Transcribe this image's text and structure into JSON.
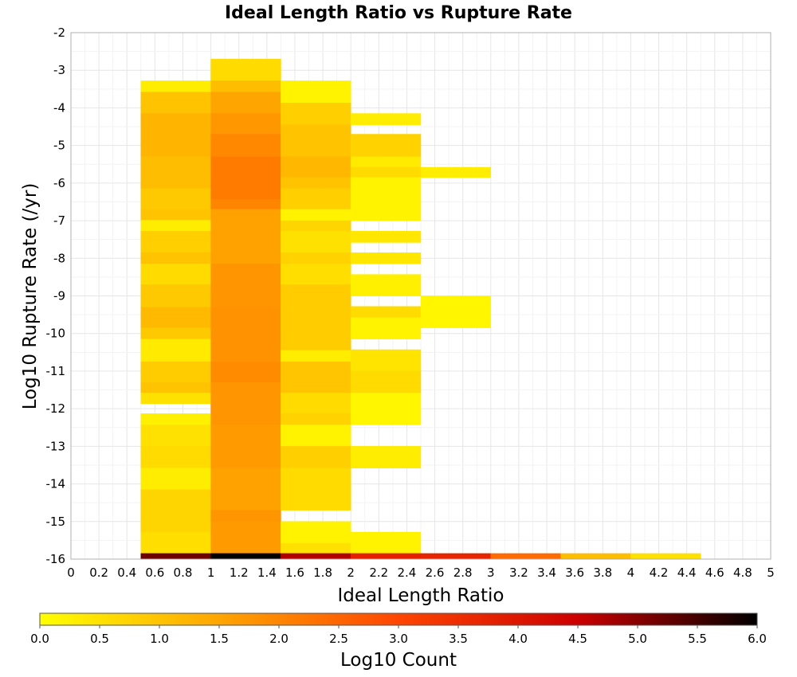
{
  "chart_data": {
    "type": "heatmap",
    "title": "Ideal Length Ratio vs Rupture Rate",
    "xlabel": "Ideal Length Ratio",
    "ylabel": "Log10 Rupture Rate (/yr)",
    "xlim": [
      0,
      5
    ],
    "ylim": [
      -16,
      -2
    ],
    "x_ticks": [
      "0",
      "0.2",
      "0.4",
      "0.6",
      "0.8",
      "1",
      "1.2",
      "1.4",
      "1.6",
      "1.8",
      "2",
      "2.2",
      "2.4",
      "2.6",
      "2.8",
      "3",
      "3.2",
      "3.4",
      "3.6",
      "3.8",
      "4",
      "4.2",
      "4.4",
      "4.6",
      "4.8",
      "5"
    ],
    "y_ticks": [
      "-2",
      "-3",
      "-4",
      "-5",
      "-6",
      "-7",
      "-8",
      "-9",
      "-10",
      "-11",
      "-12",
      "-13",
      "-14",
      "-15",
      "-16"
    ],
    "grid": true,
    "colorbar": {
      "label": "Log10 Count",
      "min": 0.0,
      "max": 6.0,
      "ticks": [
        "0.0",
        "0.5",
        "1.0",
        "1.5",
        "2.0",
        "2.5",
        "3.0",
        "3.5",
        "4.0",
        "4.5",
        "5.0",
        "5.5",
        "6.0"
      ],
      "colors": [
        "#ffff00",
        "#ffa500",
        "#ff4500",
        "#cc0000",
        "#000000"
      ]
    },
    "columns": [
      {
        "x0": 0.5,
        "x1": 1.0,
        "cells": [
          {
            "y0": -3.28,
            "y1": -3.58,
            "v": 0.3
          },
          {
            "y0": -3.58,
            "y1": -4.15,
            "v": 1.0
          },
          {
            "y0": -4.15,
            "y1": -5.3,
            "v": 1.25
          },
          {
            "y0": -5.3,
            "y1": -6.15,
            "v": 1.1
          },
          {
            "y0": -6.15,
            "y1": -6.7,
            "v": 0.9
          },
          {
            "y0": -6.7,
            "y1": -6.99,
            "v": 1.0
          },
          {
            "y0": -6.99,
            "y1": -7.28,
            "v": 0.3
          },
          {
            "y0": -7.28,
            "y1": -7.85,
            "v": 0.8
          },
          {
            "y0": -7.85,
            "y1": -8.15,
            "v": 1.0
          },
          {
            "y0": -8.15,
            "y1": -8.7,
            "v": 0.6
          },
          {
            "y0": -8.7,
            "y1": -9.3,
            "v": 0.9
          },
          {
            "y0": -9.3,
            "y1": -9.85,
            "v": 1.15
          },
          {
            "y0": -9.85,
            "y1": -10.15,
            "v": 0.9
          },
          {
            "y0": -10.15,
            "y1": -10.75,
            "v": 0.35
          },
          {
            "y0": -10.75,
            "y1": -11.3,
            "v": 0.85
          },
          {
            "y0": -11.3,
            "y1": -11.58,
            "v": 1.0
          },
          {
            "y0": -11.58,
            "y1": -11.87,
            "v": 0.5
          },
          {
            "y0": -12.13,
            "y1": -12.43,
            "v": 0.25
          },
          {
            "y0": -12.43,
            "y1": -13.0,
            "v": 0.5
          },
          {
            "y0": -13.0,
            "y1": -13.58,
            "v": 0.6
          },
          {
            "y0": -13.58,
            "y1": -14.15,
            "v": 0.3
          },
          {
            "y0": -14.15,
            "y1": -15.28,
            "v": 0.7
          },
          {
            "y0": -15.28,
            "y1": -15.85,
            "v": 0.55
          },
          {
            "y0": -15.85,
            "y1": -16.0,
            "v": 5.2
          }
        ]
      },
      {
        "x0": 1.0,
        "x1": 1.5,
        "cells": [
          {
            "y0": -2.7,
            "y1": -3.28,
            "v": 0.6
          },
          {
            "y0": -3.28,
            "y1": -3.58,
            "v": 1.1
          },
          {
            "y0": -3.58,
            "y1": -4.15,
            "v": 1.5
          },
          {
            "y0": -4.15,
            "y1": -4.7,
            "v": 1.7
          },
          {
            "y0": -4.7,
            "y1": -5.3,
            "v": 1.95
          },
          {
            "y0": -5.3,
            "y1": -6.43,
            "v": 2.15
          },
          {
            "y0": -6.43,
            "y1": -6.7,
            "v": 2.0
          },
          {
            "y0": -6.7,
            "y1": -8.15,
            "v": 1.55
          },
          {
            "y0": -8.15,
            "y1": -9.3,
            "v": 1.75
          },
          {
            "y0": -9.3,
            "y1": -10.75,
            "v": 1.8
          },
          {
            "y0": -10.75,
            "y1": -11.3,
            "v": 1.9
          },
          {
            "y0": -11.3,
            "y1": -12.43,
            "v": 1.75
          },
          {
            "y0": -12.43,
            "y1": -13.58,
            "v": 1.65
          },
          {
            "y0": -13.58,
            "y1": -14.7,
            "v": 1.55
          },
          {
            "y0": -14.7,
            "y1": -15.0,
            "v": 1.75
          },
          {
            "y0": -15.0,
            "y1": -15.85,
            "v": 1.65
          },
          {
            "y0": -15.85,
            "y1": -16.0,
            "v": 6.0
          }
        ]
      },
      {
        "x0": 1.5,
        "x1": 2.0,
        "cells": [
          {
            "y0": -3.28,
            "y1": -3.87,
            "v": 0.2
          },
          {
            "y0": -3.87,
            "y1": -4.45,
            "v": 0.8
          },
          {
            "y0": -4.45,
            "y1": -5.3,
            "v": 1.0
          },
          {
            "y0": -5.3,
            "y1": -5.85,
            "v": 1.2
          },
          {
            "y0": -5.85,
            "y1": -6.15,
            "v": 1.0
          },
          {
            "y0": -6.15,
            "y1": -6.7,
            "v": 0.8
          },
          {
            "y0": -6.7,
            "y1": -7.0,
            "v": 0.2
          },
          {
            "y0": -7.0,
            "y1": -7.28,
            "v": 0.7
          },
          {
            "y0": -7.28,
            "y1": -7.85,
            "v": 0.5
          },
          {
            "y0": -7.85,
            "y1": -8.15,
            "v": 0.75
          },
          {
            "y0": -8.15,
            "y1": -8.7,
            "v": 0.55
          },
          {
            "y0": -8.7,
            "y1": -10.45,
            "v": 0.85
          },
          {
            "y0": -10.45,
            "y1": -10.75,
            "v": 0.3
          },
          {
            "y0": -10.75,
            "y1": -11.58,
            "v": 0.95
          },
          {
            "y0": -11.58,
            "y1": -12.13,
            "v": 0.6
          },
          {
            "y0": -12.13,
            "y1": -12.43,
            "v": 0.75
          },
          {
            "y0": -12.43,
            "y1": -13.0,
            "v": 0.2
          },
          {
            "y0": -13.0,
            "y1": -13.58,
            "v": 0.8
          },
          {
            "y0": -13.58,
            "y1": -14.7,
            "v": 0.6
          },
          {
            "y0": -15.0,
            "y1": -15.58,
            "v": 0.2
          },
          {
            "y0": -15.58,
            "y1": -15.85,
            "v": 0.5
          },
          {
            "y0": -15.85,
            "y1": -16.0,
            "v": 4.7
          }
        ]
      },
      {
        "x0": 2.0,
        "x1": 2.5,
        "cells": [
          {
            "y0": -4.15,
            "y1": -4.45,
            "v": 0.3
          },
          {
            "y0": -4.7,
            "y1": -5.3,
            "v": 0.75
          },
          {
            "y0": -5.3,
            "y1": -5.58,
            "v": 0.35
          },
          {
            "y0": -5.58,
            "y1": -5.85,
            "v": 0.6
          },
          {
            "y0": -5.85,
            "y1": -7.0,
            "v": 0.2
          },
          {
            "y0": -7.28,
            "y1": -7.58,
            "v": 0.4
          },
          {
            "y0": -7.85,
            "y1": -8.15,
            "v": 0.4
          },
          {
            "y0": -8.43,
            "y1": -9.0,
            "v": 0.25
          },
          {
            "y0": -9.28,
            "y1": -9.58,
            "v": 0.6
          },
          {
            "y0": -9.58,
            "y1": -10.15,
            "v": 0.2
          },
          {
            "y0": -10.43,
            "y1": -11.0,
            "v": 0.45
          },
          {
            "y0": -11.0,
            "y1": -11.58,
            "v": 0.6
          },
          {
            "y0": -11.58,
            "y1": -12.43,
            "v": 0.15
          },
          {
            "y0": -13.0,
            "y1": -13.58,
            "v": 0.3
          },
          {
            "y0": -15.28,
            "y1": -15.85,
            "v": 0.2
          },
          {
            "y0": -15.85,
            "y1": -16.0,
            "v": 3.8
          }
        ]
      },
      {
        "x0": 2.5,
        "x1": 3.0,
        "cells": [
          {
            "y0": -5.58,
            "y1": -5.85,
            "v": 0.3
          },
          {
            "y0": -9.0,
            "y1": -9.85,
            "v": 0.15
          },
          {
            "y0": -15.85,
            "y1": -16.0,
            "v": 3.7
          }
        ]
      },
      {
        "x0": 3.0,
        "x1": 3.5,
        "cells": [
          {
            "y0": -15.85,
            "y1": -16.0,
            "v": 2.4
          }
        ]
      },
      {
        "x0": 3.5,
        "x1": 4.0,
        "cells": [
          {
            "y0": -15.85,
            "y1": -16.0,
            "v": 1.1
          }
        ]
      },
      {
        "x0": 4.0,
        "x1": 4.5,
        "cells": [
          {
            "y0": -15.85,
            "y1": -16.0,
            "v": 0.5
          }
        ]
      }
    ]
  }
}
